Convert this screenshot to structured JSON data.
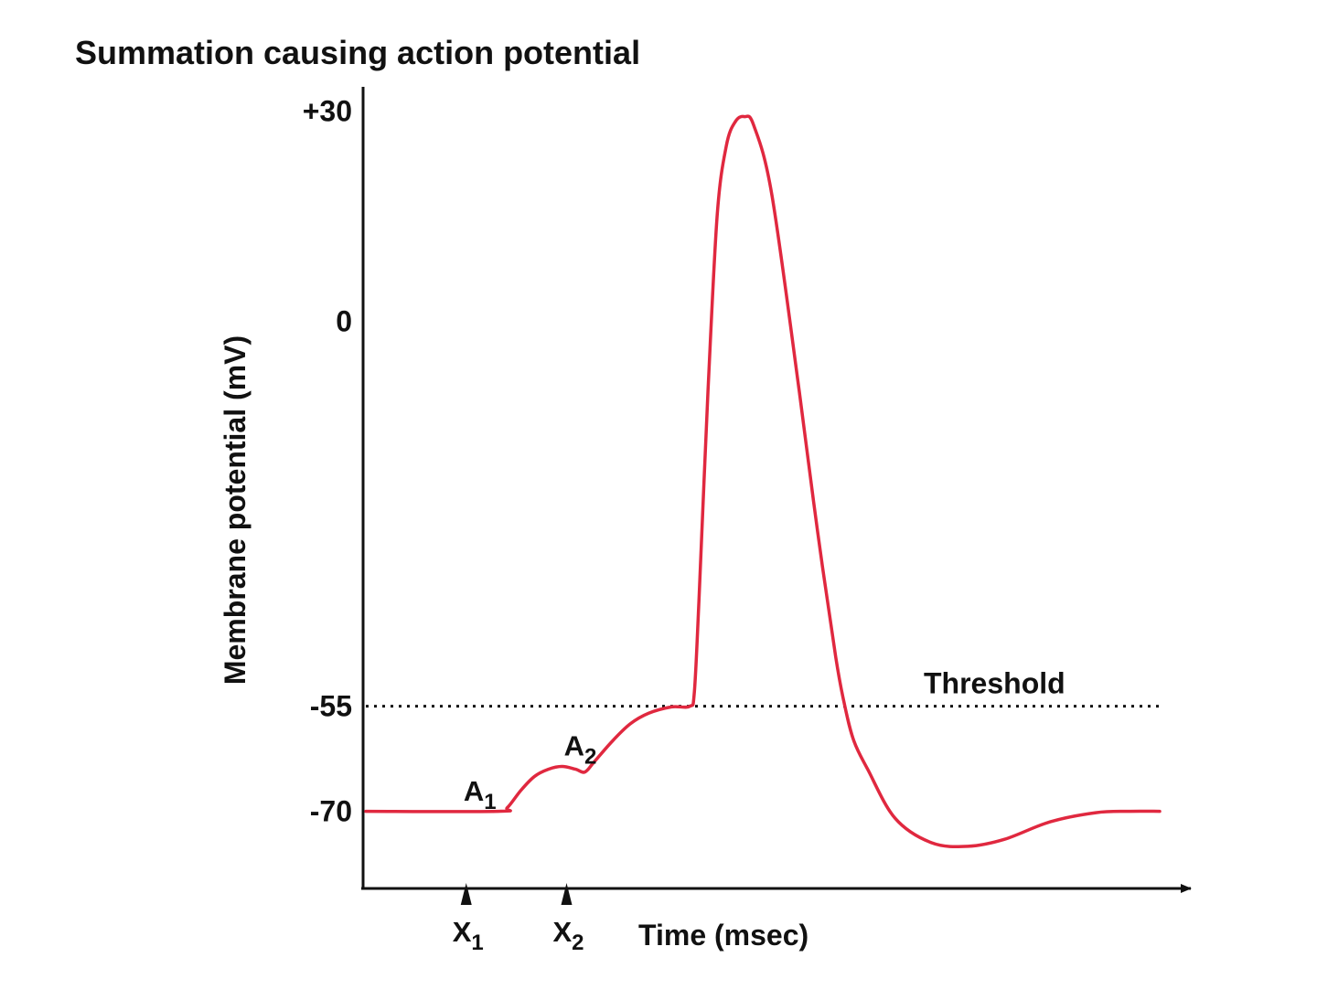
{
  "chart_data": {
    "type": "line",
    "title": "Summation causing action potential",
    "xlabel": "Time (msec)",
    "ylabel": "Membrane potential (mV)",
    "yticks": [
      {
        "value": 30,
        "label": "+30"
      },
      {
        "value": 0,
        "label": "0"
      },
      {
        "value": -55,
        "label": "-55"
      },
      {
        "value": -70,
        "label": "-70"
      }
    ],
    "ylim": [
      -80.5,
      31.5
    ],
    "xlim": [
      0,
      8.7
    ],
    "grid": false,
    "threshold": {
      "value": -55,
      "label": "Threshold",
      "style": "dotted"
    },
    "stimuli": [
      {
        "x": 1.1,
        "label": "X",
        "sub": "1"
      },
      {
        "x": 2.2,
        "label": "X",
        "sub": "2"
      }
    ],
    "annotations": [
      {
        "x": 1.25,
        "y": -68.5,
        "label": "A",
        "sub": "1"
      },
      {
        "x": 2.35,
        "y": -62.0,
        "label": "A",
        "sub": "2"
      }
    ],
    "series": [
      {
        "color": "#e0283f",
        "points": [
          [
            0.0,
            -70.0
          ],
          [
            1.45,
            -70.0
          ],
          [
            1.55,
            -69.5
          ],
          [
            1.7,
            -67.0
          ],
          [
            1.85,
            -65.0
          ],
          [
            2.0,
            -64.0
          ],
          [
            2.15,
            -63.6
          ],
          [
            2.3,
            -64.0
          ],
          [
            2.4,
            -64.4
          ],
          [
            2.5,
            -63.0
          ],
          [
            2.7,
            -60.0
          ],
          [
            2.9,
            -57.5
          ],
          [
            3.1,
            -56.0
          ],
          [
            3.35,
            -55.1
          ],
          [
            3.55,
            -55.0
          ],
          [
            3.6,
            -53.0
          ],
          [
            3.65,
            -40.0
          ],
          [
            3.75,
            -10.0
          ],
          [
            3.85,
            15.0
          ],
          [
            3.95,
            25.0
          ],
          [
            4.05,
            28.5
          ],
          [
            4.15,
            29.2
          ],
          [
            4.25,
            28.0
          ],
          [
            4.45,
            18.0
          ],
          [
            4.75,
            -10.0
          ],
          [
            4.95,
            -30.0
          ],
          [
            5.15,
            -48.0
          ],
          [
            5.25,
            -55.0
          ],
          [
            5.35,
            -60.0
          ],
          [
            5.5,
            -64.0
          ],
          [
            5.8,
            -71.0
          ],
          [
            6.2,
            -74.5
          ],
          [
            6.6,
            -75.0
          ],
          [
            7.0,
            -74.0
          ],
          [
            7.5,
            -71.5
          ],
          [
            8.0,
            -70.2
          ],
          [
            8.35,
            -70.0
          ],
          [
            8.7,
            -70.0
          ]
        ]
      }
    ]
  }
}
